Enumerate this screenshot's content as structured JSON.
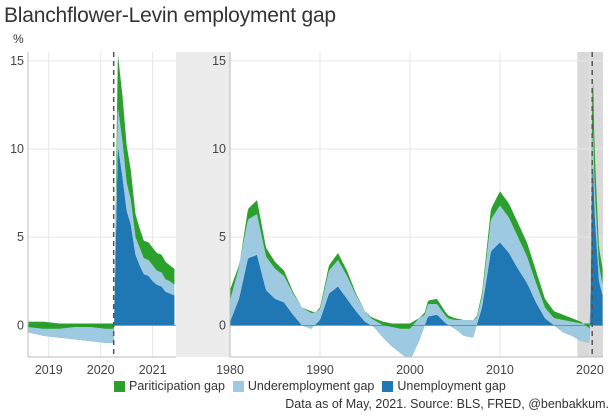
{
  "title": "Blanchflower-Levin employment gap",
  "ylabel": "%",
  "source": "Data as of May, 2021. Source: BLS, FRED, @benbakkum.",
  "legend": [
    {
      "label": "Pariticipation gap",
      "color": "#2ca02c"
    },
    {
      "label": "Underemployment gap",
      "color": "#9ecae1"
    },
    {
      "label": "Unemployment gap",
      "color": "#1f77b4"
    }
  ],
  "chart_data": [
    {
      "type": "area",
      "panel": "zoom",
      "xlim": [
        2018.6,
        2021.45
      ],
      "ylim": [
        -1.8,
        15.5
      ],
      "xticks": [
        2019,
        2020,
        2021
      ],
      "yticks": [
        0,
        5,
        10,
        15
      ],
      "recession_marker": 2020.25,
      "series": [
        {
          "name": "Unemployment gap",
          "x": [
            2018.6,
            2018.9,
            2019.2,
            2019.5,
            2019.8,
            2020.1,
            2020.25,
            2020.33,
            2020.42,
            2020.5,
            2020.58,
            2020.67,
            2020.75,
            2020.83,
            2020.92,
            2021.0,
            2021.08,
            2021.17,
            2021.25,
            2021.33,
            2021.42
          ],
          "values": [
            -0.4,
            -0.6,
            -0.7,
            -0.8,
            -0.9,
            -1.0,
            -1.0,
            10.2,
            8.4,
            6.5,
            5.7,
            4.0,
            3.4,
            2.9,
            2.8,
            2.5,
            2.3,
            2.2,
            1.9,
            1.8,
            1.7
          ]
        },
        {
          "name": "Underemployment gap",
          "x": [
            2018.6,
            2018.9,
            2019.2,
            2019.5,
            2019.8,
            2020.1,
            2020.25,
            2020.33,
            2020.42,
            2020.5,
            2020.58,
            2020.67,
            2020.75,
            2020.83,
            2020.92,
            2021.0,
            2021.08,
            2021.17,
            2021.25,
            2021.33,
            2021.42
          ],
          "values": [
            0.2,
            0.2,
            0.1,
            0.1,
            0.1,
            0.1,
            0.1,
            2.2,
            2.0,
            1.6,
            1.4,
            1.0,
            1.0,
            0.9,
            0.9,
            0.9,
            0.8,
            0.8,
            0.7,
            0.7,
            0.6
          ]
        },
        {
          "name": "Pariticipation gap",
          "x": [
            2018.6,
            2018.9,
            2019.2,
            2019.5,
            2019.8,
            2020.1,
            2020.25,
            2020.33,
            2020.42,
            2020.5,
            2020.58,
            2020.67,
            2020.75,
            2020.83,
            2020.92,
            2021.0,
            2021.08,
            2021.17,
            2021.25,
            2021.33,
            2021.42
          ],
          "values": [
            -0.3,
            -0.4,
            -0.3,
            -0.2,
            -0.2,
            -0.3,
            -0.3,
            3.0,
            2.6,
            2.1,
            1.7,
            1.3,
            1.1,
            1.0,
            1.0,
            1.0,
            1.0,
            1.0,
            1.0,
            0.9,
            0.9
          ]
        }
      ]
    },
    {
      "type": "area",
      "panel": "full",
      "xlim": [
        1980,
        2021.45
      ],
      "ylim": [
        -1.8,
        15.5
      ],
      "xticks": [
        1980,
        1990,
        2000,
        2010,
        2020
      ],
      "yticks": [
        0,
        5,
        10,
        15
      ],
      "zoom_window": [
        2018.6,
        2021.45
      ],
      "recession_marker": 2020.25,
      "series": [
        {
          "name": "Unemployment gap",
          "x": [
            1980,
            1981,
            1982,
            1983,
            1984,
            1985,
            1986,
            1987,
            1988,
            1989,
            1990,
            1991,
            1992,
            1993,
            1994,
            1995,
            1996,
            1997,
            1998,
            1999,
            2000,
            2001,
            2002,
            2003,
            2004,
            2005,
            2006,
            2007,
            2008,
            2009,
            2010,
            2011,
            2012,
            2013,
            2014,
            2015,
            2016,
            2017,
            2018,
            2019,
            2020,
            2020.3,
            2020.5,
            2021,
            2021.4
          ],
          "values": [
            0.2,
            1.5,
            3.8,
            4.0,
            2.0,
            1.5,
            1.3,
            0.6,
            0.0,
            -0.2,
            0.3,
            1.8,
            2.2,
            1.5,
            0.8,
            0.2,
            -0.1,
            -0.7,
            -1.2,
            -1.6,
            -2.0,
            -0.9,
            0.5,
            0.6,
            0.1,
            -0.2,
            -0.6,
            -0.7,
            1.0,
            4.2,
            4.7,
            4.1,
            3.2,
            2.4,
            1.3,
            0.4,
            0.0,
            -0.4,
            -0.6,
            -0.9,
            -1.0,
            10.2,
            6.5,
            2.5,
            1.7
          ]
        },
        {
          "name": "Underemployment gap",
          "x": [
            1980,
            1981,
            1982,
            1983,
            1984,
            1985,
            1986,
            1987,
            1988,
            1989,
            1990,
            1991,
            1992,
            1993,
            1994,
            1995,
            1996,
            1997,
            1998,
            1999,
            2000,
            2001,
            2002,
            2003,
            2004,
            2005,
            2006,
            2007,
            2008,
            2009,
            2010,
            2011,
            2012,
            2013,
            2014,
            2015,
            2016,
            2017,
            2018,
            2019,
            2020,
            2020.3,
            2020.5,
            2021,
            2021.4
          ],
          "values": [
            1.8,
            1.9,
            2.2,
            2.3,
            1.9,
            1.7,
            1.5,
            1.2,
            1.0,
            0.8,
            0.6,
            1.3,
            1.5,
            1.3,
            0.9,
            0.6,
            0.4,
            0.2,
            0.1,
            0.1,
            0.1,
            0.4,
            0.7,
            0.6,
            0.4,
            0.3,
            0.3,
            0.3,
            0.6,
            1.8,
            2.1,
            2.0,
            1.8,
            1.5,
            1.1,
            0.6,
            0.4,
            0.3,
            0.2,
            0.1,
            0.1,
            2.2,
            1.6,
            0.9,
            0.6
          ]
        },
        {
          "name": "Pariticipation gap",
          "x": [
            1980,
            1981,
            1982,
            1983,
            1984,
            1985,
            1986,
            1987,
            1988,
            1989,
            1990,
            1991,
            1992,
            1993,
            1994,
            1995,
            1996,
            1997,
            1998,
            1999,
            2000,
            2001,
            2002,
            2003,
            2004,
            2005,
            2006,
            2007,
            2008,
            2009,
            2010,
            2011,
            2012,
            2013,
            2014,
            2015,
            2016,
            2017,
            2018,
            2019,
            2020,
            2020.3,
            2020.5,
            2021,
            2021.4
          ],
          "values": [
            -0.6,
            -0.1,
            0.6,
            0.8,
            0.5,
            0.4,
            0.3,
            0.1,
            0.0,
            -0.1,
            0.1,
            0.3,
            0.4,
            0.3,
            0.1,
            0.0,
            -0.1,
            -0.2,
            -0.2,
            -0.3,
            -0.3,
            0.0,
            0.2,
            0.3,
            0.2,
            0.1,
            0.0,
            0.0,
            0.2,
            0.6,
            0.8,
            0.8,
            0.8,
            0.8,
            0.7,
            0.5,
            0.4,
            0.3,
            0.2,
            0.1,
            -0.3,
            3.0,
            2.1,
            1.0,
            0.9
          ]
        }
      ]
    }
  ]
}
